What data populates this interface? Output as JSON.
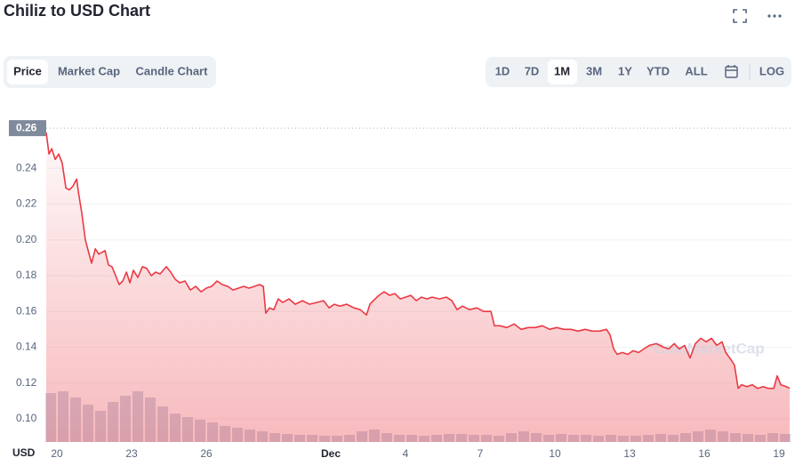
{
  "header": {
    "title": "Chiliz to USD Chart"
  },
  "tabs": {
    "items": [
      "Price",
      "Market Cap",
      "Candle Chart"
    ],
    "active": 0
  },
  "ranges": {
    "items": [
      "1D",
      "7D",
      "1M",
      "3M",
      "1Y",
      "YTD",
      "ALL"
    ],
    "active": 2,
    "log": "LOG"
  },
  "chart_data": {
    "type": "line",
    "color": "#ea3943",
    "x": [
      -0.43,
      -0.32,
      -0.21,
      -0.07,
      0.07,
      0.21,
      0.36,
      0.5,
      0.64,
      0.79,
      0.86,
      1,
      1.14,
      1.29,
      1.39,
      1.54,
      1.68,
      1.93,
      2.07,
      2.21,
      2.36,
      2.5,
      2.64,
      2.79,
      2.93,
      3.07,
      3.25,
      3.43,
      3.61,
      3.79,
      3.96,
      4.14,
      4.39,
      4.57,
      4.75,
      4.93,
      5.14,
      5.36,
      5.57,
      5.79,
      6,
      6.21,
      6.43,
      6.64,
      6.86,
      7.07,
      7.29,
      7.5,
      7.71,
      7.93,
      8.14,
      8.29,
      8.39,
      8.54,
      8.71,
      8.89,
      9.07,
      9.32,
      9.57,
      9.86,
      10.14,
      10.43,
      10.71,
      10.93,
      11.14,
      11.36,
      11.64,
      11.93,
      12.18,
      12.43,
      12.57,
      12.71,
      12.93,
      13.14,
      13.36,
      13.57,
      13.79,
      14,
      14.21,
      14.43,
      14.64,
      14.86,
      15.07,
      15.36,
      15.64,
      15.86,
      16.07,
      16.29,
      16.57,
      16.86,
      17.14,
      17.43,
      17.57,
      17.79,
      18.07,
      18.36,
      18.64,
      18.93,
      19.21,
      19.5,
      19.79,
      20.07,
      20.36,
      20.64,
      20.93,
      21.21,
      21.5,
      21.79,
      22.07,
      22.21,
      22.36,
      22.5,
      22.71,
      22.93,
      23.14,
      23.36,
      23.57,
      23.79,
      24.07,
      24.36,
      24.57,
      24.79,
      25,
      25.21,
      25.43,
      25.64,
      25.86,
      26.07,
      26.29,
      26.5,
      26.71,
      26.86,
      27.07,
      27.21,
      27.36,
      27.5,
      27.71,
      27.93,
      28.14,
      28.36,
      28.57,
      28.79,
      28.93,
      29.07,
      29.29,
      29.43
    ],
    "values": [
      0.26,
      0.248,
      0.251,
      0.245,
      0.248,
      0.243,
      0.229,
      0.228,
      0.23,
      0.234,
      0.227,
      0.215,
      0.2,
      0.192,
      0.187,
      0.195,
      0.192,
      0.194,
      0.186,
      0.185,
      0.18,
      0.175,
      0.177,
      0.182,
      0.176,
      0.183,
      0.179,
      0.185,
      0.184,
      0.18,
      0.182,
      0.181,
      0.185,
      0.182,
      0.178,
      0.176,
      0.177,
      0.172,
      0.174,
      0.171,
      0.173,
      0.174,
      0.177,
      0.175,
      0.174,
      0.172,
      0.173,
      0.174,
      0.173,
      0.174,
      0.175,
      0.174,
      0.159,
      0.162,
      0.161,
      0.167,
      0.165,
      0.167,
      0.164,
      0.166,
      0.164,
      0.165,
      0.166,
      0.162,
      0.164,
      0.163,
      0.164,
      0.162,
      0.161,
      0.158,
      0.164,
      0.166,
      0.169,
      0.171,
      0.169,
      0.17,
      0.167,
      0.168,
      0.169,
      0.166,
      0.168,
      0.167,
      0.168,
      0.167,
      0.168,
      0.166,
      0.161,
      0.163,
      0.161,
      0.162,
      0.16,
      0.16,
      0.152,
      0.152,
      0.151,
      0.153,
      0.15,
      0.151,
      0.151,
      0.152,
      0.15,
      0.151,
      0.15,
      0.15,
      0.149,
      0.15,
      0.149,
      0.149,
      0.15,
      0.147,
      0.139,
      0.136,
      0.137,
      0.136,
      0.138,
      0.137,
      0.139,
      0.141,
      0.142,
      0.14,
      0.139,
      0.142,
      0.139,
      0.141,
      0.134,
      0.142,
      0.145,
      0.143,
      0.145,
      0.141,
      0.143,
      0.137,
      0.133,
      0.13,
      0.117,
      0.119,
      0.118,
      0.119,
      0.117,
      0.118,
      0.117,
      0.117,
      0.124,
      0.119,
      0.118,
      0.117
    ],
    "volume": {
      "color": "#cfd6e4",
      "x": [
        -0.25,
        0.25,
        0.75,
        1.25,
        1.75,
        2.25,
        2.75,
        3.25,
        3.75,
        4.25,
        4.75,
        5.25,
        5.75,
        6.25,
        6.75,
        7.25,
        7.75,
        8.25,
        8.75,
        9.25,
        9.75,
        10.25,
        10.75,
        11.25,
        11.75,
        12.25,
        12.75,
        13.25,
        13.75,
        14.25,
        14.75,
        15.25,
        15.75,
        16.25,
        16.75,
        17.25,
        17.75,
        18.25,
        18.75,
        19.25,
        19.75,
        20.25,
        20.75,
        21.25,
        21.75,
        22.25,
        22.75,
        23.25,
        23.75,
        24.25,
        24.75,
        25.25,
        25.75,
        26.25,
        26.75,
        27.25,
        27.75,
        28.25,
        28.75,
        29.25
      ],
      "values": [
        55,
        57,
        50,
        42,
        35,
        45,
        52,
        57,
        50,
        40,
        32,
        28,
        25,
        22,
        18,
        16,
        14,
        12,
        10,
        9,
        8,
        8,
        7,
        7,
        8,
        12,
        14,
        10,
        8,
        8,
        7,
        8,
        9,
        9,
        8,
        8,
        7,
        10,
        12,
        10,
        8,
        9,
        8,
        8,
        7,
        8,
        7,
        7,
        8,
        9,
        8,
        10,
        12,
        14,
        12,
        10,
        9,
        8,
        10,
        9
      ]
    },
    "xlim": [
      -0.43,
      29.5
    ],
    "xticks": [
      {
        "value": 0,
        "label": "20"
      },
      {
        "value": 3,
        "label": "23"
      },
      {
        "value": 6,
        "label": "26"
      },
      {
        "value": 11,
        "label": "Dec"
      },
      {
        "value": 14,
        "label": "4"
      },
      {
        "value": 17,
        "label": "7"
      },
      {
        "value": 20,
        "label": "10"
      },
      {
        "value": 23,
        "label": "13"
      },
      {
        "value": 26,
        "label": "16"
      },
      {
        "value": 29,
        "label": "19"
      }
    ],
    "ylim": [
      0.087,
      0.268
    ],
    "yticks": [
      {
        "value": 0.1,
        "label": "0.10"
      },
      0.12,
      0.14,
      0.16,
      0.18,
      {
        "value": 0.2,
        "label": "0.20"
      },
      0.22,
      0.24
    ],
    "y_unit": "USD",
    "max_marker": 0.26,
    "grid": true,
    "watermark": "CoinMarketCap"
  }
}
